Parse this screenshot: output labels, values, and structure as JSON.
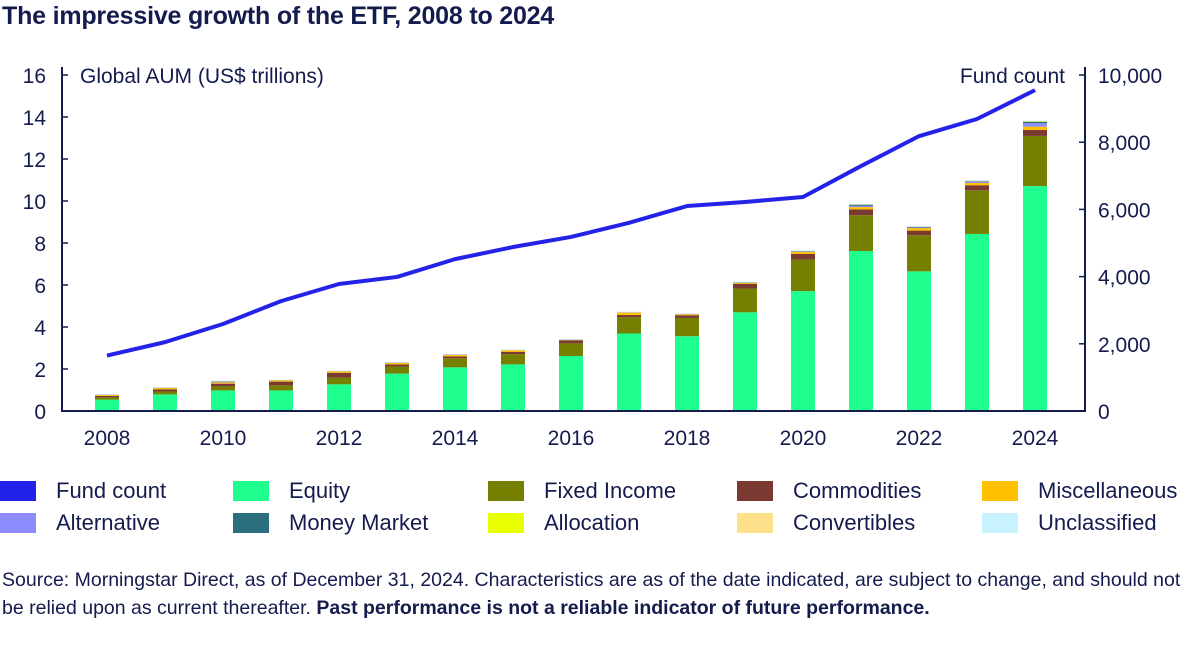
{
  "title": "The impressive growth of the ETF, 2008 to 2024",
  "source": {
    "text": "Source: Morningstar Direct, as of December 31, 2024. Characteristics are as of the date indicated, are subject to change, and should not be relied upon as current thereafter. ",
    "bold": "Past performance is not a reliable indicator of future performance."
  },
  "chart_data": {
    "type": "bar",
    "stacked": true,
    "title": "The impressive growth of the ETF, 2008 to 2024",
    "ylabel": "Global AUM (US$ trillions)",
    "y2label": "Fund count",
    "ylim": [
      0,
      16
    ],
    "y2lim": [
      0,
      10000
    ],
    "yticks": [
      "0",
      "2",
      "4",
      "6",
      "8",
      "10",
      "12",
      "14",
      "16"
    ],
    "y2ticks": [
      "0",
      "2,000",
      "4,000",
      "6,000",
      "8,000",
      "10,000"
    ],
    "categories": [
      "2008",
      "2009",
      "2010",
      "2011",
      "2012",
      "2013",
      "2014",
      "2015",
      "2016",
      "2017",
      "2018",
      "2019",
      "2020",
      "2021",
      "2022",
      "2023",
      "2024"
    ],
    "xticks": [
      "2008",
      "2010",
      "2012",
      "2014",
      "2016",
      "2018",
      "2020",
      "2022",
      "2024"
    ],
    "grid": false,
    "legend_position": "bottom",
    "series": [
      {
        "name": "Equity",
        "color": "#1fff8f",
        "values": [
          0.54,
          0.79,
          0.98,
          0.98,
          1.27,
          1.78,
          2.08,
          2.22,
          2.62,
          3.69,
          3.56,
          4.7,
          5.71,
          7.62,
          6.65,
          8.43,
          10.71
        ]
      },
      {
        "name": "Fixed Income",
        "color": "#768000",
        "values": [
          0.11,
          0.14,
          0.19,
          0.24,
          0.32,
          0.34,
          0.43,
          0.49,
          0.6,
          0.77,
          0.87,
          1.13,
          1.5,
          1.7,
          1.72,
          2.08,
          2.39
        ]
      },
      {
        "name": "Commodities",
        "color": "#7a3a32",
        "values": [
          0.07,
          0.1,
          0.13,
          0.18,
          0.23,
          0.1,
          0.09,
          0.1,
          0.15,
          0.11,
          0.13,
          0.22,
          0.27,
          0.28,
          0.22,
          0.24,
          0.28
        ]
      },
      {
        "name": "Miscellaneous",
        "color": "#ffc000",
        "values": [
          0.06,
          0.08,
          0.06,
          0.06,
          0.07,
          0.08,
          0.08,
          0.08,
          0.03,
          0.13,
          0.06,
          0.05,
          0.09,
          0.11,
          0.12,
          0.11,
          0.16
        ]
      },
      {
        "name": "Alternative",
        "color": "#8c8cff",
        "values": [
          0.01,
          0.01,
          0.05,
          0.02,
          0.02,
          0.02,
          0.02,
          0.02,
          0.01,
          0.01,
          0.01,
          0.02,
          0.03,
          0.06,
          0.03,
          0.05,
          0.17
        ]
      },
      {
        "name": "Money Market",
        "color": "#2a6e80",
        "values": [
          0,
          0,
          0.01,
          0,
          0,
          0,
          0,
          0,
          0,
          0,
          0,
          0.01,
          0.02,
          0.06,
          0.03,
          0.03,
          0.07
        ]
      },
      {
        "name": "Allocation",
        "color": "#e8ff00",
        "values": [
          0,
          0,
          0,
          0,
          0,
          0,
          0,
          0,
          0,
          0,
          0,
          0,
          0,
          0,
          0,
          0,
          0.02
        ]
      },
      {
        "name": "Convertibles",
        "color": "#ffe08a",
        "values": [
          0.01,
          0.01,
          0.01,
          0.01,
          0.01,
          0.01,
          0.01,
          0.01,
          0.01,
          0.01,
          0.01,
          0.01,
          0.01,
          0.02,
          0.02,
          0.03,
          0.02
        ]
      },
      {
        "name": "Unclassified",
        "color": "#c8f2ff",
        "values": [
          0.01,
          0.01,
          0.01,
          0.01,
          0.01,
          0.01,
          0.01,
          0.01,
          0.01,
          0.01,
          0.01,
          0.01,
          0.02,
          0.02,
          0.02,
          0.02,
          0.01
        ]
      }
    ],
    "line": {
      "name": "Fund count",
      "color": "#2222e8",
      "axis": "right",
      "values": [
        1650,
        2050,
        2590,
        3270,
        3780,
        3990,
        4520,
        4880,
        5180,
        5600,
        6100,
        6220,
        6370,
        7290,
        8180,
        8690,
        9550
      ]
    }
  },
  "legend": [
    {
      "label": "Fund count",
      "color": "#2222e8"
    },
    {
      "label": "Equity",
      "color": "#1fff8f"
    },
    {
      "label": "Fixed Income",
      "color": "#768000"
    },
    {
      "label": "Commodities",
      "color": "#7a3a32"
    },
    {
      "label": "Miscellaneous",
      "color": "#ffc000"
    },
    {
      "label": "Alternative",
      "color": "#8c8cff"
    },
    {
      "label": "Money Market",
      "color": "#2a6e80"
    },
    {
      "label": "Allocation",
      "color": "#e8ff00"
    },
    {
      "label": "Convertibles",
      "color": "#ffe08a"
    },
    {
      "label": "Unclassified",
      "color": "#c8f2ff"
    }
  ]
}
